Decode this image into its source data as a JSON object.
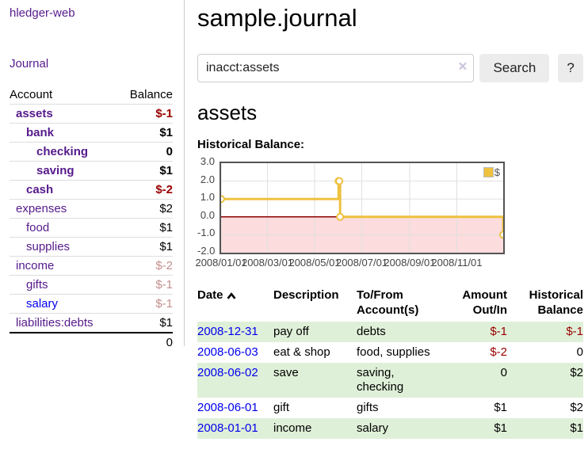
{
  "app": {
    "title": "hledger-web"
  },
  "sidebar": {
    "journal_link": "Journal",
    "accounts": {
      "header": {
        "account": "Account",
        "balance": "Balance"
      },
      "rows": [
        {
          "name": "assets",
          "balance": "$-1",
          "indent": 1,
          "in_query": true,
          "link_color": "purple",
          "balance_style": "neg-strong"
        },
        {
          "name": "bank",
          "balance": "$1",
          "indent": 2,
          "in_query": true,
          "link_color": "purple",
          "balance_style": "pos"
        },
        {
          "name": "checking",
          "balance": "0",
          "indent": 3,
          "in_query": true,
          "link_color": "purple",
          "balance_style": "pos"
        },
        {
          "name": "saving",
          "balance": "$1",
          "indent": 3,
          "in_query": true,
          "link_color": "purple",
          "balance_style": "pos"
        },
        {
          "name": "cash",
          "balance": "$-2",
          "indent": 2,
          "in_query": true,
          "link_color": "purple",
          "balance_style": "neg-strong"
        },
        {
          "name": "expenses",
          "balance": "$2",
          "indent": 1,
          "in_query": false,
          "link_color": "purple",
          "balance_style": "pos"
        },
        {
          "name": "food",
          "balance": "$1",
          "indent": 2,
          "in_query": false,
          "link_color": "purple",
          "balance_style": "pos"
        },
        {
          "name": "supplies",
          "balance": "$1",
          "indent": 2,
          "in_query": false,
          "link_color": "purple",
          "balance_style": "pos"
        },
        {
          "name": "income",
          "balance": "$-2",
          "indent": 1,
          "in_query": false,
          "link_color": "purple",
          "balance_style": "neg-muted"
        },
        {
          "name": "gifts",
          "balance": "$-1",
          "indent": 2,
          "in_query": false,
          "link_color": "purple",
          "balance_style": "neg-muted"
        },
        {
          "name": "salary",
          "balance": "$-1",
          "indent": 2,
          "in_query": false,
          "link_color": "blue",
          "balance_style": "neg-muted"
        },
        {
          "name": "liabilities:debts",
          "balance": "$1",
          "indent": 1,
          "in_query": false,
          "link_color": "purple",
          "balance_style": "pos"
        }
      ],
      "total": "0"
    }
  },
  "main": {
    "page_title": "sample.journal",
    "search": {
      "value": "inacct:assets",
      "clear_icon": "×",
      "search_button": "Search",
      "help_button": "?"
    },
    "account_heading": "assets",
    "chart_title": "Historical Balance:"
  },
  "chart_data": {
    "type": "line",
    "step": true,
    "title": "Historical Balance",
    "legend": {
      "label": "$",
      "position": "top-right",
      "swatch_color": "#edc240"
    },
    "series": [
      {
        "name": "$",
        "color": "#edc240",
        "points": [
          [
            "2008/01/01",
            1
          ],
          [
            "2008/06/01",
            2
          ],
          [
            "2008/06/02",
            2
          ],
          [
            "2008/06/03",
            0
          ],
          [
            "2008/12/31",
            -1
          ]
        ]
      }
    ],
    "ylim": [
      -2,
      3
    ],
    "yticks": [
      "3.0",
      "2.0",
      "1.0",
      "0.0",
      "-1.0",
      "-2.0"
    ],
    "ytick_values": [
      3,
      2,
      1,
      0,
      -1,
      -2
    ],
    "xticks": [
      "2008/01/01",
      "2008/03/01",
      "2008/05/01",
      "2008/07/01",
      "2008/09/01",
      "2008/11/01"
    ],
    "grid": true,
    "negative_region_color": "#fcdcdc",
    "zero_line_color": "#8b0000"
  },
  "transactions": {
    "headers": {
      "date": "Date",
      "description": "Description",
      "accounts": "To/From Account(s)",
      "amount": "Amount Out/In",
      "balance": "Historical Balance"
    },
    "rows": [
      {
        "date": "2008-12-31",
        "description": "pay off",
        "accounts": "debts",
        "accounts_wrap": false,
        "amount": "$-1",
        "amount_negative": true,
        "balance": "$-1",
        "balance_negative": true
      },
      {
        "date": "2008-06-03",
        "description": "eat & shop",
        "accounts": "food, supplies",
        "accounts_wrap": false,
        "amount": "$-2",
        "amount_negative": true,
        "balance": "0",
        "balance_negative": false
      },
      {
        "date": "2008-06-02",
        "description": "save",
        "accounts": "saving, checking",
        "accounts_wrap": true,
        "amount": "0",
        "amount_negative": false,
        "balance": "$2",
        "balance_negative": false
      },
      {
        "date": "2008-06-01",
        "description": "gift",
        "accounts": "gifts",
        "accounts_wrap": false,
        "amount": "$1",
        "amount_negative": false,
        "balance": "$2",
        "balance_negative": false
      },
      {
        "date": "2008-01-01",
        "description": "income",
        "accounts": "salary",
        "accounts_wrap": false,
        "amount": "$1",
        "amount_negative": false,
        "balance": "$1",
        "balance_negative": false
      }
    ]
  },
  "colors": {
    "link_purple": "#551a8b",
    "link_blue": "#0000ee",
    "negative_strong": "#990000",
    "negative_muted": "#c48f8f",
    "row_green": "#dff0d8",
    "chart_line": "#edc240",
    "chart_negative_region": "#fcdcdc",
    "chart_zero_line": "#8b0000",
    "button_bg": "#ececec"
  }
}
